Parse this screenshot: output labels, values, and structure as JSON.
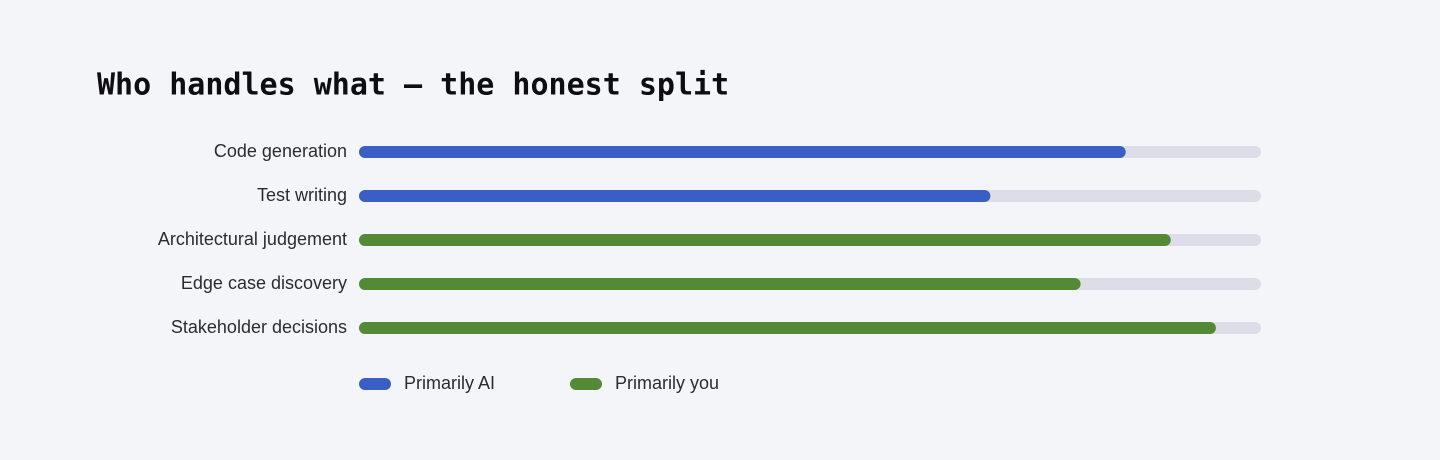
{
  "chart_data": {
    "type": "bar",
    "orientation": "horizontal",
    "title": "Who handles what — the honest split",
    "categories": [
      "Code generation",
      "Test writing",
      "Architectural judgement",
      "Edge case discovery",
      "Stakeholder decisions"
    ],
    "series": [
      {
        "name": "Primarily AI",
        "color": "#3a5fc4",
        "values": [
          85,
          70,
          null,
          null,
          null
        ]
      },
      {
        "name": "Primarily you",
        "color": "#548a36",
        "values": [
          null,
          null,
          90,
          80,
          95
        ]
      }
    ],
    "xlim": [
      0,
      100
    ],
    "track_color": "#dcdde6"
  }
}
